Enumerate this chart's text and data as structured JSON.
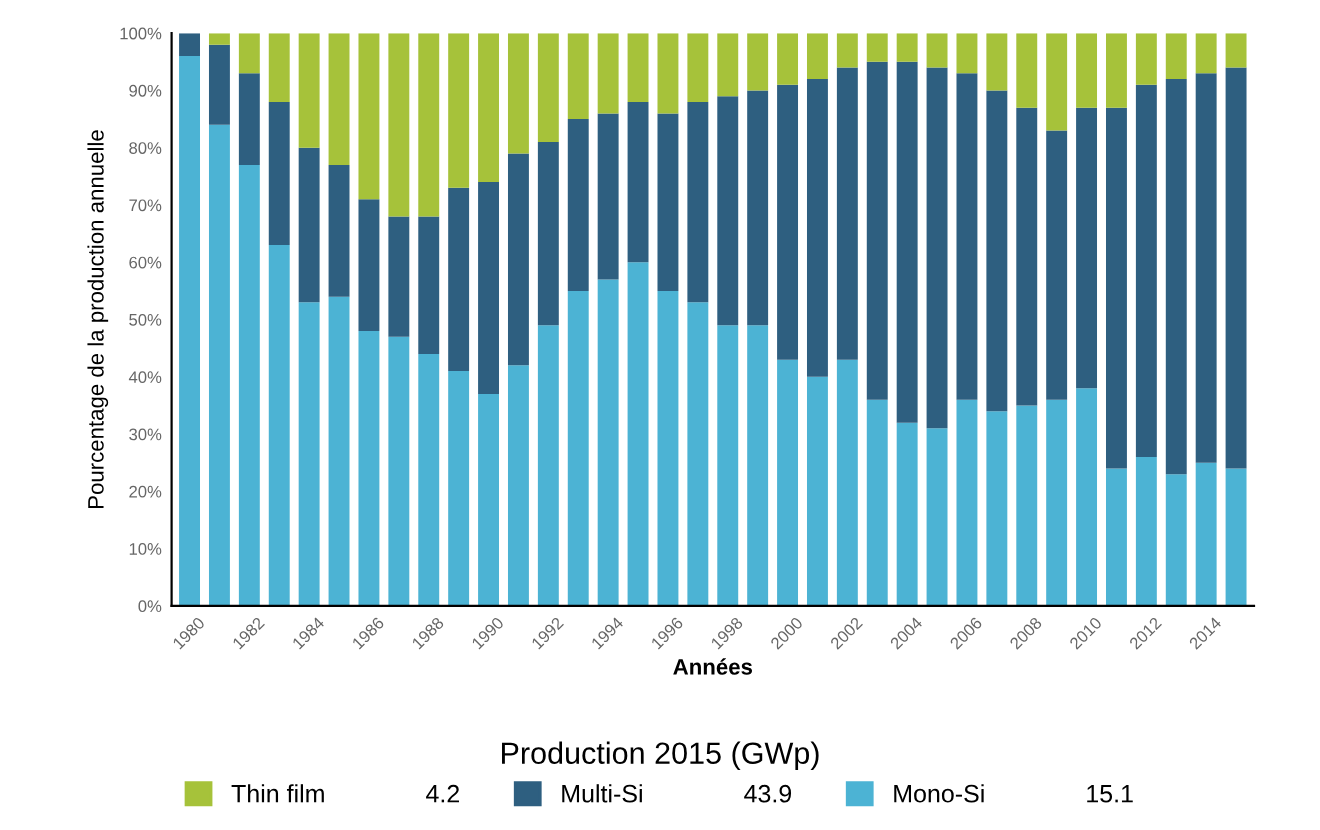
{
  "chart_data": {
    "type": "bar",
    "stacked": true,
    "xlabel": "Années",
    "ylabel": "Pourcentage de la production annuelle",
    "legend_title": "Production 2015 (GWp)",
    "legend": "bottom",
    "categories": [
      "1980",
      null,
      "1982",
      null,
      "1984",
      null,
      "1986",
      null,
      "1988",
      null,
      "1990",
      null,
      "1992",
      null,
      "1994",
      null,
      "1996",
      null,
      "1998",
      null,
      "2000",
      null,
      "2002",
      null,
      "2004",
      null,
      "2006",
      null,
      "2008",
      null,
      "2010",
      null,
      "2012",
      null,
      "2014",
      null
    ],
    "series": [
      {
        "name": "Mono-Si",
        "color": "#4cb3d4",
        "values": [
          96,
          84,
          77,
          63,
          53,
          54,
          48,
          47,
          44,
          41,
          37,
          42,
          49,
          55,
          57,
          60,
          55,
          53,
          49,
          49,
          43,
          40,
          43,
          36,
          32,
          31,
          36,
          34,
          35,
          36,
          38,
          24,
          26,
          23,
          25,
          24
        ]
      },
      {
        "name": "Multi-Si",
        "color": "#2e5f80",
        "values": [
          4,
          14,
          16,
          25,
          27,
          23,
          23,
          21,
          24,
          32,
          37,
          37,
          32,
          30,
          29,
          28,
          31,
          35,
          40,
          41,
          48,
          52,
          51,
          59,
          63,
          63,
          57,
          56,
          52,
          47,
          49,
          63,
          65,
          69,
          68,
          70
        ]
      },
      {
        "name": "Thin film",
        "color": "#a6c23a",
        "values": [
          0,
          2,
          7,
          12,
          20,
          23,
          29,
          32,
          32,
          27,
          26,
          21,
          19,
          15,
          14,
          12,
          14,
          12,
          11,
          10,
          9,
          8,
          6,
          5,
          5,
          6,
          7,
          10,
          13,
          17,
          13,
          13,
          9,
          8,
          7,
          6
        ]
      }
    ],
    "annotations": [
      "15.1",
      "43.9",
      "4.2"
    ],
    "ylim": [
      0,
      100
    ],
    "yticks": [
      {
        "value": 0,
        "label": "0%"
      },
      {
        "value": 10,
        "label": "10%"
      },
      {
        "value": 20,
        "label": "20%"
      },
      {
        "value": 30,
        "label": "30%"
      },
      {
        "value": 40,
        "label": "40%"
      },
      {
        "value": 50,
        "label": "50%"
      },
      {
        "value": 60,
        "label": "60%"
      },
      {
        "value": 70,
        "label": "70%"
      },
      {
        "value": 80,
        "label": "80%"
      },
      {
        "value": 90,
        "label": "90%"
      },
      {
        "value": 100,
        "label": "100%"
      }
    ],
    "grid": false
  }
}
